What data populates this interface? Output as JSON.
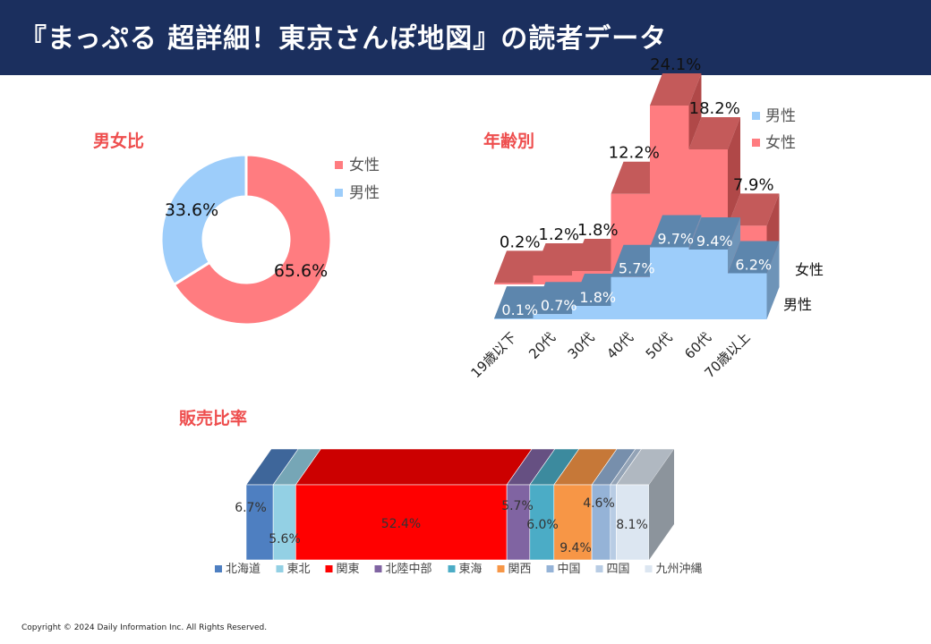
{
  "header": {
    "title": "『まっぷる 超詳細！東京さんぽ地図』の読者データ"
  },
  "sections": {
    "gender_title": "男女比",
    "age_title": "年齢別",
    "sales_title": "販売比率"
  },
  "copyright": "Copyright © 2024 Daily Information Inc. All Rights Reserved.",
  "colors": {
    "header_bg": "#1b2f5e",
    "female": "#ff7c80",
    "male": "#9dcdfa",
    "section_title": "#ee4e4e"
  },
  "chart_data": [
    {
      "id": "gender",
      "type": "pie",
      "donut": true,
      "series": [
        {
          "name": "女性",
          "value": 65.6,
          "label": "65.6%",
          "color": "#ff7c80"
        },
        {
          "name": "男性",
          "value": 33.6,
          "label": "33.6%",
          "color": "#9dcdfa"
        }
      ],
      "legend": [
        "女性",
        "男性"
      ],
      "legend_position": "right"
    },
    {
      "id": "age",
      "type": "area",
      "three_d": true,
      "categories": [
        "19歳以下",
        "20代",
        "30代",
        "40代",
        "50代",
        "60代",
        "70歳以上"
      ],
      "series": [
        {
          "name": "女性",
          "color": "#ff7c80",
          "values": [
            0.2,
            1.2,
            1.8,
            12.2,
            24.1,
            18.2,
            7.9
          ],
          "labels": [
            "0.2%",
            "1.2%",
            "1.8%",
            "12.2%",
            "24.1%",
            "18.2%",
            "7.9%"
          ]
        },
        {
          "name": "男性",
          "color": "#9dcdfa",
          "values": [
            0.1,
            0.7,
            1.8,
            5.7,
            9.7,
            9.4,
            6.2
          ],
          "labels": [
            "0.1%",
            "0.7%",
            "1.8%",
            "5.7%",
            "9.7%",
            "9.4%",
            "6.2%"
          ]
        }
      ],
      "depth_labels": [
        "女性",
        "男性"
      ],
      "legend": [
        "男性",
        "女性"
      ],
      "legend_position": "top-right"
    },
    {
      "id": "sales",
      "type": "bar",
      "stacked_100": true,
      "orientation": "horizontal",
      "three_d": true,
      "series": [
        {
          "name": "北海道",
          "value": 6.7,
          "label": "6.7%",
          "color": "#4e7fc1"
        },
        {
          "name": "東北",
          "value": 5.6,
          "label": "5.6%",
          "color": "#93d0e4"
        },
        {
          "name": "関東",
          "value": 52.4,
          "label": "52.4%",
          "color": "#ff0000"
        },
        {
          "name": "北陸中部",
          "value": 5.7,
          "label": "5.7%",
          "color": "#8064a2"
        },
        {
          "name": "東海",
          "value": 6.0,
          "label": "6.0%",
          "color": "#4bacc6"
        },
        {
          "name": "関西",
          "value": 9.4,
          "label": "9.4%",
          "color": "#f79646"
        },
        {
          "name": "中国",
          "value": 4.6,
          "label": "4.6%",
          "color": "#95b3d7"
        },
        {
          "name": "四国",
          "value": 1.5,
          "label": "",
          "color": "#b8cce4"
        },
        {
          "name": "九州沖縄",
          "value": 8.1,
          "label": "8.1%",
          "color": "#dce6f1"
        }
      ],
      "legend_position": "bottom"
    }
  ]
}
